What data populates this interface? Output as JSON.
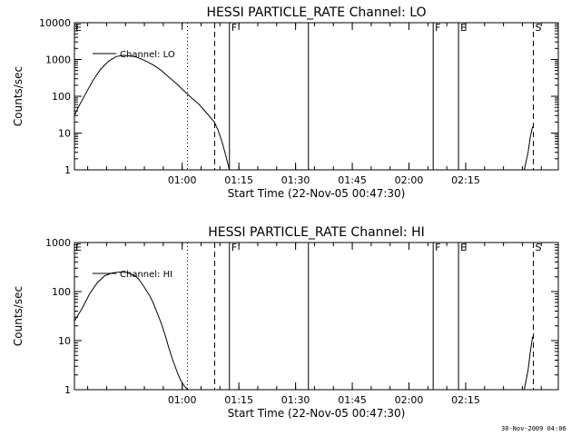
{
  "footer": {
    "timestamp": "30-Nov-2009 04:06"
  },
  "chart_data": [
    {
      "type": "line",
      "title": "HESSI PARTICLE_RATE Channel: LO",
      "xlabel": "Start Time (22-Nov-05 00:47:30)",
      "ylabel": "Counts/sec",
      "xlim_min": [
        -16,
        112
      ],
      "ylim": [
        1,
        10000
      ],
      "yscale": "log",
      "x_unit": "minutes after 00:47:30",
      "xticks": [
        {
          "x": 12.5,
          "label": "01:00"
        },
        {
          "x": 27.5,
          "label": "01:15"
        },
        {
          "x": 42.5,
          "label": "01:30"
        },
        {
          "x": 57.5,
          "label": "01:45"
        },
        {
          "x": 72.5,
          "label": "02:00"
        },
        {
          "x": 87.5,
          "label": "02:15"
        }
      ],
      "yticks": [
        {
          "y": 1,
          "label": "1"
        },
        {
          "y": 10,
          "label": "10"
        },
        {
          "y": 100,
          "label": "100"
        },
        {
          "y": 1000,
          "label": "1000"
        },
        {
          "y": 10000,
          "label": "10000"
        }
      ],
      "legend": {
        "label": "Channel: LO",
        "position": "top-left"
      },
      "series": [
        {
          "name": "Channel: LO",
          "x": [
            -16,
            -15,
            -13,
            -11,
            -9,
            -7,
            -5,
            -3,
            -1,
            0,
            1,
            3,
            5,
            7,
            9,
            11,
            13,
            15,
            17,
            19,
            21,
            22,
            23,
            24,
            25
          ],
          "y": [
            30,
            50,
            120,
            280,
            550,
            900,
            1200,
            1300,
            1250,
            1200,
            1100,
            900,
            700,
            500,
            330,
            220,
            140,
            90,
            60,
            35,
            20,
            12,
            6,
            2.5,
            1
          ]
        },
        {
          "name": "",
          "x": [
            103,
            104,
            104.6,
            105.2
          ],
          "y": [
            1,
            3,
            8,
            15
          ]
        }
      ],
      "vlines": [
        {
          "x": 13.9,
          "style": "dotted"
        },
        {
          "x": 21.1,
          "style": "dashed"
        },
        {
          "x": 25.0,
          "style": "solid",
          "label": "F"
        },
        {
          "x": 45.9,
          "style": "solid"
        },
        {
          "x": 78.9,
          "style": "solid",
          "label": "F"
        },
        {
          "x": 85.6,
          "style": "solid",
          "label": "E"
        },
        {
          "x": 105.4,
          "style": "dashed",
          "label": "S"
        }
      ],
      "left_label": "E"
    },
    {
      "type": "line",
      "title": "HESSI PARTICLE_RATE Channel: HI",
      "xlabel": "Start Time (22-Nov-05 00:47:30)",
      "ylabel": "Counts/sec",
      "xlim_min": [
        -16,
        112
      ],
      "ylim": [
        1,
        1000
      ],
      "yscale": "log",
      "x_unit": "minutes after 00:47:30",
      "xticks": [
        {
          "x": 12.5,
          "label": "01:00"
        },
        {
          "x": 27.5,
          "label": "01:15"
        },
        {
          "x": 42.5,
          "label": "01:30"
        },
        {
          "x": 57.5,
          "label": "01:45"
        },
        {
          "x": 72.5,
          "label": "02:00"
        },
        {
          "x": 87.5,
          "label": "02:15"
        }
      ],
      "yticks": [
        {
          "y": 1,
          "label": "1"
        },
        {
          "y": 10,
          "label": "10"
        },
        {
          "y": 100,
          "label": "100"
        },
        {
          "y": 1000,
          "label": "1000"
        }
      ],
      "legend": {
        "label": "Channel: HI",
        "position": "top-left"
      },
      "series": [
        {
          "name": "Channel: HI",
          "x": [
            -16,
            -14,
            -12,
            -10,
            -8,
            -6,
            -4,
            -2,
            0,
            1,
            2,
            4,
            5,
            6,
            7,
            8,
            9,
            10,
            11,
            12,
            13,
            14
          ],
          "y": [
            25,
            45,
            90,
            150,
            210,
            240,
            250,
            245,
            210,
            180,
            140,
            80,
            55,
            35,
            22,
            13,
            7,
            4,
            2.5,
            1.6,
            1.2,
            1
          ]
        },
        {
          "name": "",
          "x": [
            103,
            104,
            104.6,
            105.2
          ],
          "y": [
            1,
            2.5,
            6,
            12
          ]
        }
      ],
      "vlines": [
        {
          "x": 13.9,
          "style": "dotted"
        },
        {
          "x": 21.1,
          "style": "dashed"
        },
        {
          "x": 25.0,
          "style": "solid",
          "label": "F"
        },
        {
          "x": 45.9,
          "style": "solid"
        },
        {
          "x": 78.9,
          "style": "solid",
          "label": "F"
        },
        {
          "x": 85.6,
          "style": "solid",
          "label": "E"
        },
        {
          "x": 105.4,
          "style": "dashed",
          "label": "S"
        }
      ],
      "left_label": "E"
    }
  ]
}
